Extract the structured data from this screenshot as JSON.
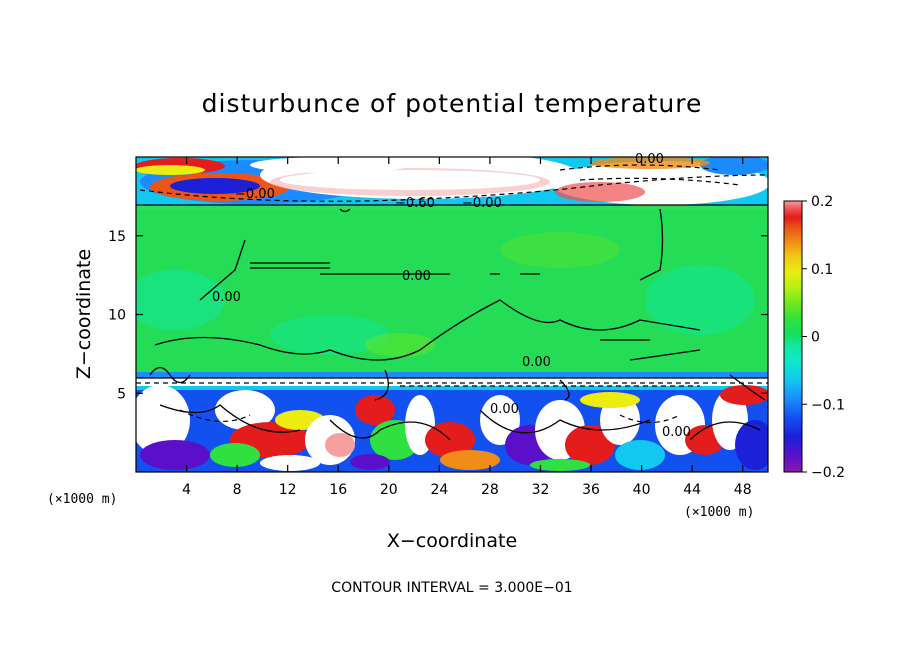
{
  "chart_data": {
    "type": "heatmap",
    "title": "disturbunce of potential temperature",
    "xlabel": "X−coordinate",
    "ylabel": "Z−coordinate",
    "x_unit_left": "(×1000 m)",
    "x_unit_right": "(×1000 m)",
    "xlim": [
      0,
      50
    ],
    "ylim": [
      0,
      20
    ],
    "x_ticks": [
      4,
      8,
      12,
      16,
      20,
      24,
      28,
      32,
      36,
      40,
      44,
      48
    ],
    "x_tick_labels": [
      "4",
      "8",
      "12",
      "16",
      "20",
      "24",
      "28",
      "32",
      "36",
      "40",
      "44",
      "48"
    ],
    "y_ticks": [
      5,
      10,
      15
    ],
    "y_tick_labels": [
      "5",
      "10",
      "15"
    ],
    "colorbar": {
      "min": -0.2,
      "max": 0.2,
      "ticks": [
        0.2,
        0.1,
        0,
        -0.1,
        -0.2
      ],
      "tick_labels": [
        "0.2",
        "0.1",
        "0",
        "−0.1",
        "−0.2"
      ],
      "colors": [
        "#8c1aa8",
        "#5a10c8",
        "#1c20d8",
        "#1250f0",
        "#1a8cff",
        "#12c8f0",
        "#10e8c8",
        "#10e8a0",
        "#12e064",
        "#2ee040",
        "#6ee81c",
        "#b4f010",
        "#ecec10",
        "#f0c414",
        "#f08c18",
        "#ec5418",
        "#e41c1c",
        "#f05050",
        "#f4a0a0"
      ]
    },
    "contour_labels": [
      "0.00",
      "−0.00",
      "−0.60",
      "−0.00",
      "0.00",
      "0.00",
      "0.00",
      "0.00",
      "0.00"
    ],
    "annotation": "CONTOUR INTERVAL = 3.000E−01"
  }
}
